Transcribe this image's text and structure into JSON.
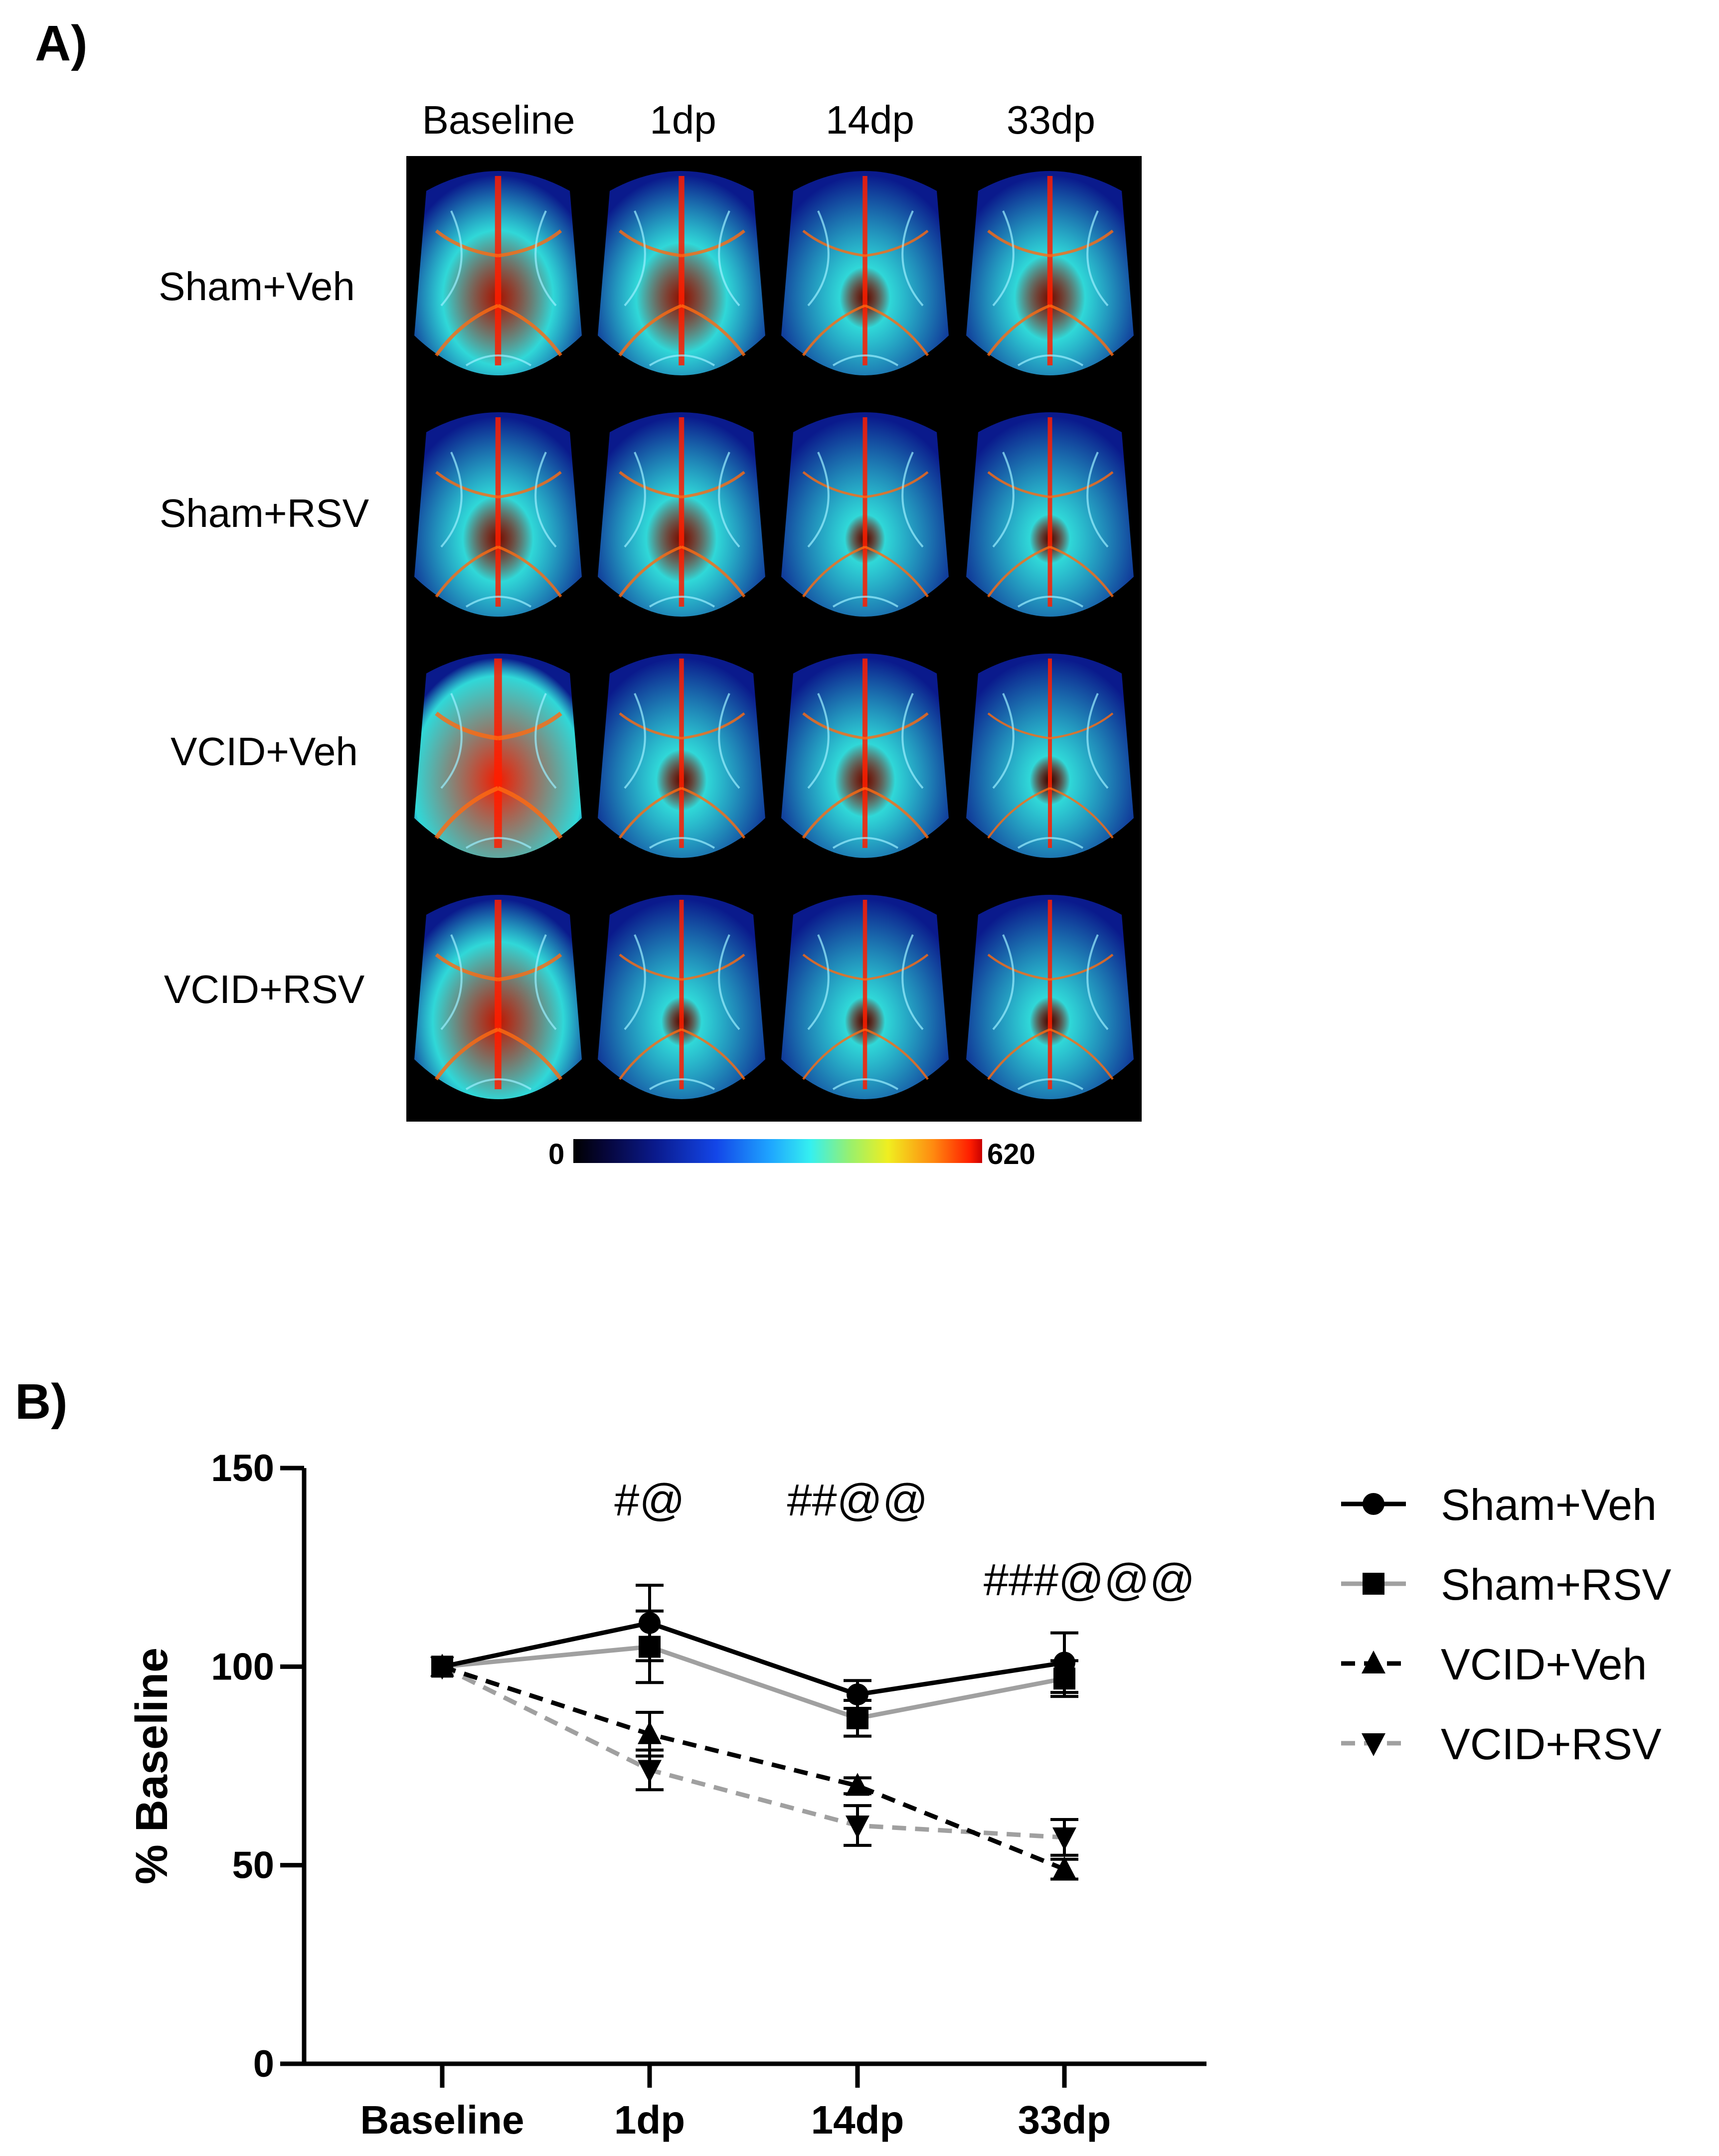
{
  "panel_a": {
    "label": "A)",
    "columns": [
      "Baseline",
      "1dp",
      "14dp",
      "33dp"
    ],
    "rows": [
      "Sham+Veh",
      "Sham+RSV",
      "VCID+Veh",
      "VCID+RSV"
    ],
    "colorbar": {
      "min_label": "0",
      "max_label": "620"
    },
    "intensity": [
      [
        0.65,
        0.55,
        0.35,
        0.45
      ],
      [
        0.45,
        0.45,
        0.3,
        0.3
      ],
      [
        0.95,
        0.35,
        0.4,
        0.2
      ],
      [
        0.75,
        0.3,
        0.25,
        0.25
      ]
    ],
    "colors": {
      "low": "#0a1a8c",
      "mid": "#1ea4ff",
      "high": "#ff1e00"
    }
  },
  "panel_b": {
    "label": "B)"
  },
  "chart_data": {
    "type": "line",
    "title": "",
    "xlabel": "",
    "ylabel": "% Baseline",
    "categories": [
      "Baseline",
      "1dp",
      "14dp",
      "33dp"
    ],
    "ylim": [
      0,
      150
    ],
    "yticks": [
      "0",
      "50",
      "100",
      "150"
    ],
    "series": [
      {
        "name": "Sham+Veh",
        "values": [
          100,
          111,
          93,
          101
        ],
        "errors": [
          0,
          9.5,
          3.5,
          7.5
        ],
        "color": "#000000",
        "dashed": false,
        "marker": "circle"
      },
      {
        "name": "Sham+RSV",
        "values": [
          100,
          105,
          87,
          97
        ],
        "errors": [
          0,
          9,
          4.5,
          4.5
        ],
        "color": "#a0a0a0",
        "dashed": false,
        "marker": "square"
      },
      {
        "name": "VCID+Veh",
        "values": [
          100,
          83,
          70,
          49
        ],
        "errors": [
          0,
          5.5,
          2,
          2.5
        ],
        "color": "#000000",
        "dashed": true,
        "marker": "triangle-up"
      },
      {
        "name": "VCID+RSV",
        "values": [
          100,
          74,
          60,
          57
        ],
        "errors": [
          0,
          5,
          5,
          4.5
        ],
        "color": "#a0a0a0",
        "dashed": true,
        "marker": "triangle-down"
      }
    ],
    "annotations": [
      {
        "text": "#@",
        "at": "1dp"
      },
      {
        "text": "##@@",
        "at": "14dp"
      },
      {
        "text": "###@@@",
        "at": "33dp"
      }
    ],
    "legend_position": "right"
  }
}
